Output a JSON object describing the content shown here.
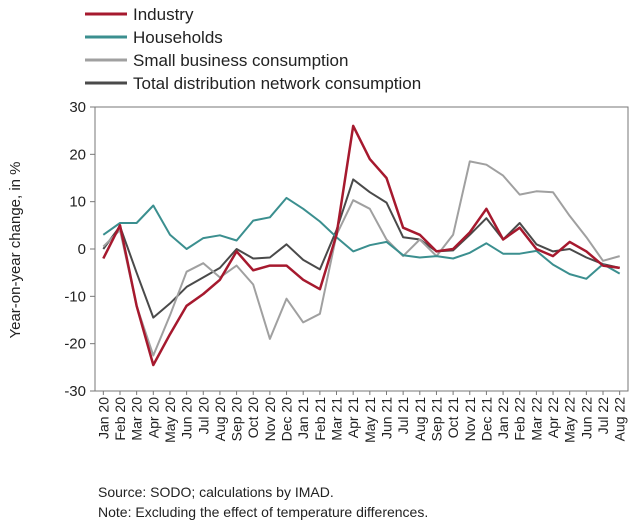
{
  "chart_data": {
    "type": "line",
    "ylabel": "Year-on-year change, in %",
    "ylim": [
      -30,
      30
    ],
    "yticks": [
      -30,
      -20,
      -10,
      0,
      10,
      20,
      30
    ],
    "grid": false,
    "legend_position": "top-left",
    "categories": [
      "Jan 20",
      "Feb 20",
      "Mar 20",
      "Apr 20",
      "May 20",
      "Jun 20",
      "Jul 20",
      "Aug 20",
      "Sep 20",
      "Oct 20",
      "Nov 20",
      "Dec 20",
      "Jan 21",
      "Feb 21",
      "Mar 21",
      "Apr 21",
      "May 21",
      "Jun 21",
      "Jul 21",
      "Aug 21",
      "Sep 21",
      "Oct 21",
      "Nov 21",
      "Dec 21",
      "Jan 22",
      "Feb 22",
      "Mar 22",
      "Apr 22",
      "May 22",
      "Jun 22",
      "Jul 22",
      "Aug 22"
    ],
    "series": [
      {
        "name": "Industry",
        "color": "#a6192e",
        "width": 2.5,
        "values": [
          -2,
          5,
          -12,
          -24.5,
          -18,
          -12,
          -9.5,
          -6.5,
          -0.5,
          -4.5,
          -3.5,
          -3.5,
          -6.5,
          -8.5,
          3,
          26,
          19,
          15,
          4.5,
          3,
          -0.5,
          0,
          3.5,
          8.5,
          2,
          4.5,
          0,
          -1.5,
          1.5,
          -0.5,
          -3.5,
          -4
        ]
      },
      {
        "name": "Households",
        "color": "#3b8f8f",
        "width": 2,
        "values": [
          3,
          5.5,
          5.5,
          9.2,
          3,
          0,
          2.3,
          2.9,
          1.8,
          6,
          6.7,
          10.8,
          8.5,
          5.8,
          2.5,
          -0.5,
          0.8,
          1.5,
          -1.3,
          -1.8,
          -1.5,
          -2,
          -0.8,
          1.2,
          -1,
          -1,
          -0.4,
          -3.3,
          -5.3,
          -6.3,
          -3.2,
          -5.2
        ]
      },
      {
        "name": "Small business consumption",
        "color": "#a0a0a0",
        "width": 2,
        "values": [
          0.5,
          4,
          -12,
          -22.5,
          -14,
          -4.8,
          -3,
          -6,
          -3.5,
          -7.5,
          -19,
          -10.5,
          -15.5,
          -13.7,
          3,
          10.3,
          8.5,
          2,
          -1.5,
          2,
          -1.5,
          3,
          18.5,
          17.8,
          15.5,
          11.5,
          12.2,
          12,
          7,
          2.5,
          -2.5,
          -1.5
        ]
      },
      {
        "name": "Total distribution network consumption",
        "color": "#4a4a4a",
        "width": 2,
        "values": [
          0,
          4.8,
          -5,
          -14.5,
          -11.5,
          -8,
          -6,
          -4,
          0,
          -2,
          -1.8,
          1,
          -2.3,
          -4.3,
          4,
          14.7,
          12,
          9.8,
          2.5,
          2,
          -0.5,
          -0.3,
          3,
          6.5,
          2,
          5.5,
          1,
          -0.5,
          0,
          -1.8,
          -3.2,
          -4
        ]
      }
    ]
  },
  "footnotes": {
    "source": "Source: SODO; calculations by IMAD.",
    "note": "Note: Excluding the effect of temperature differences."
  }
}
